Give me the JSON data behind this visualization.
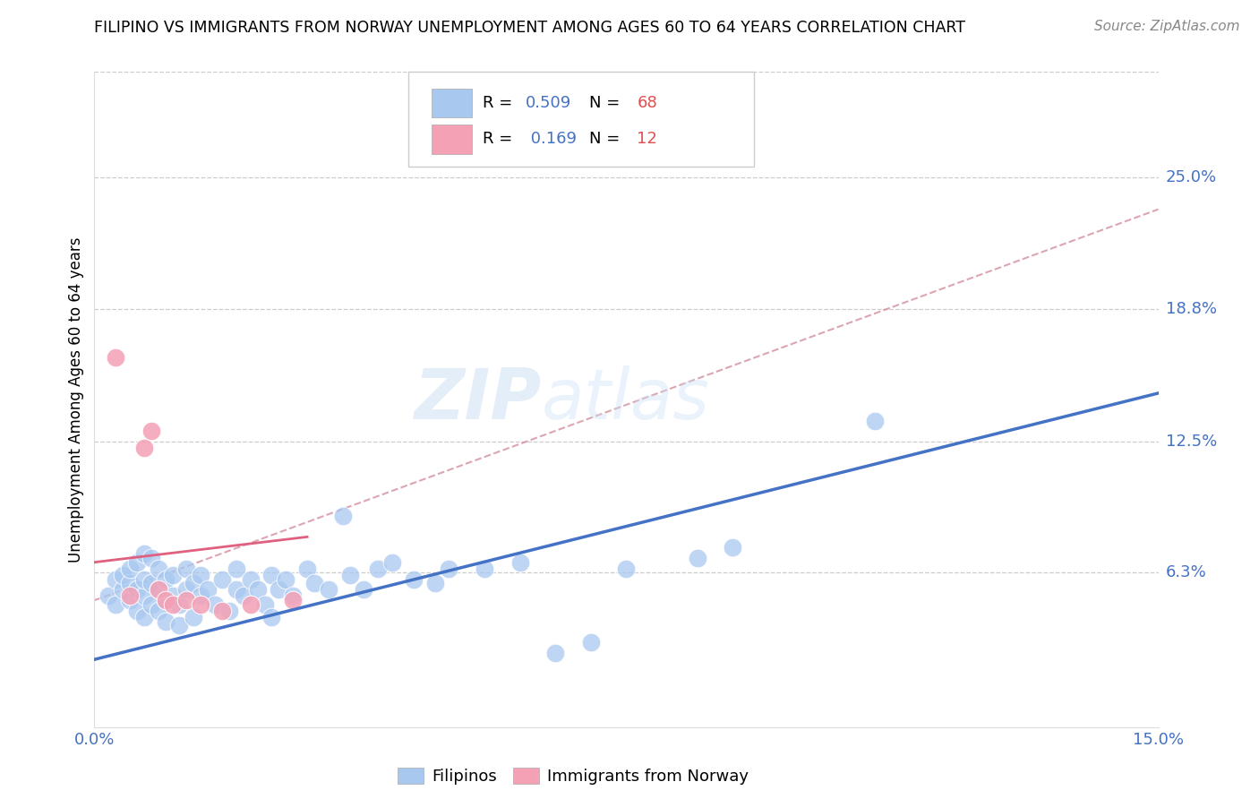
{
  "title": "FILIPINO VS IMMIGRANTS FROM NORWAY UNEMPLOYMENT AMONG AGES 60 TO 64 YEARS CORRELATION CHART",
  "source": "Source: ZipAtlas.com",
  "ylabel": "Unemployment Among Ages 60 to 64 years",
  "xlim": [
    0.0,
    0.15
  ],
  "ylim": [
    -0.01,
    0.3
  ],
  "ytick_positions": [
    0.063,
    0.125,
    0.188,
    0.25
  ],
  "ytick_labels": [
    "6.3%",
    "12.5%",
    "18.8%",
    "25.0%"
  ],
  "grid_color": "#cccccc",
  "background_color": "#ffffff",
  "watermark_zip": "ZIP",
  "watermark_atlas": "atlas",
  "filipino_color": "#a8c8f0",
  "norway_color": "#f4a0b5",
  "line_blue": "#4472c4",
  "line_pink": "#e06080",
  "line_dashed_color": "#d08898",
  "filipinos_scatter_x": [
    0.002,
    0.003,
    0.003,
    0.004,
    0.004,
    0.005,
    0.005,
    0.005,
    0.006,
    0.006,
    0.006,
    0.007,
    0.007,
    0.007,
    0.007,
    0.008,
    0.008,
    0.008,
    0.009,
    0.009,
    0.009,
    0.01,
    0.01,
    0.01,
    0.011,
    0.011,
    0.012,
    0.012,
    0.013,
    0.013,
    0.014,
    0.014,
    0.015,
    0.015,
    0.016,
    0.017,
    0.018,
    0.019,
    0.02,
    0.02,
    0.021,
    0.022,
    0.023,
    0.024,
    0.025,
    0.025,
    0.026,
    0.027,
    0.028,
    0.03,
    0.031,
    0.033,
    0.035,
    0.036,
    0.038,
    0.04,
    0.042,
    0.045,
    0.048,
    0.05,
    0.055,
    0.06,
    0.065,
    0.07,
    0.075,
    0.085,
    0.09,
    0.11
  ],
  "filipinos_scatter_y": [
    0.052,
    0.048,
    0.06,
    0.055,
    0.062,
    0.05,
    0.058,
    0.065,
    0.045,
    0.055,
    0.068,
    0.042,
    0.052,
    0.06,
    0.072,
    0.048,
    0.058,
    0.07,
    0.045,
    0.055,
    0.065,
    0.05,
    0.06,
    0.04,
    0.052,
    0.062,
    0.038,
    0.048,
    0.055,
    0.065,
    0.042,
    0.058,
    0.052,
    0.062,
    0.055,
    0.048,
    0.06,
    0.045,
    0.055,
    0.065,
    0.052,
    0.06,
    0.055,
    0.048,
    0.062,
    0.042,
    0.055,
    0.06,
    0.052,
    0.065,
    0.058,
    0.055,
    0.09,
    0.062,
    0.055,
    0.065,
    0.068,
    0.06,
    0.058,
    0.065,
    0.065,
    0.068,
    0.025,
    0.03,
    0.065,
    0.07,
    0.075,
    0.135
  ],
  "norway_scatter_x": [
    0.003,
    0.005,
    0.007,
    0.008,
    0.009,
    0.01,
    0.011,
    0.013,
    0.015,
    0.018,
    0.022,
    0.028
  ],
  "norway_scatter_y": [
    0.165,
    0.052,
    0.122,
    0.13,
    0.055,
    0.05,
    0.048,
    0.05,
    0.048,
    0.045,
    0.048,
    0.05
  ],
  "blue_line_x": [
    0.0,
    0.15
  ],
  "blue_line_y": [
    0.022,
    0.148
  ],
  "pink_line_x": [
    0.0,
    0.03
  ],
  "pink_line_y": [
    0.068,
    0.08
  ],
  "dashed_line_x": [
    0.0,
    0.15
  ],
  "dashed_line_y": [
    0.05,
    0.235
  ]
}
